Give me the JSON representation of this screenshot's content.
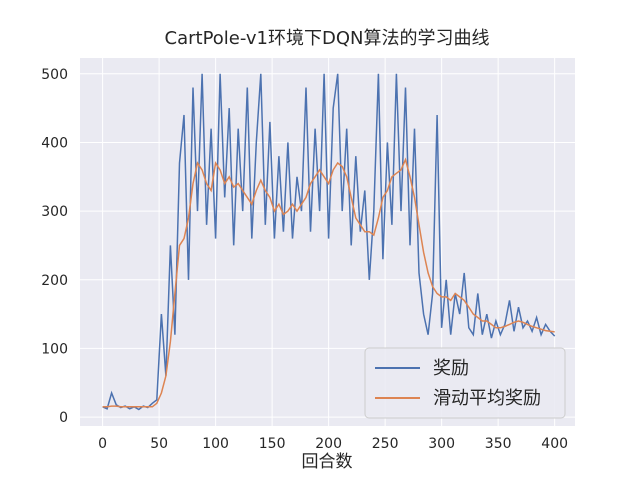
{
  "chart_data": {
    "type": "line",
    "title": "CartPole-v1环境下DQN算法的学习曲线",
    "x_label": "回合数",
    "xlim": [
      -20,
      418
    ],
    "ylim": [
      -13,
      523
    ],
    "xticks": [
      0,
      50,
      100,
      150,
      200,
      250,
      300,
      350,
      400
    ],
    "yticks": [
      0,
      100,
      200,
      300,
      400,
      500
    ],
    "grid": true,
    "legend": "lower right",
    "x": [
      0,
      4,
      8,
      12,
      16,
      20,
      24,
      28,
      32,
      36,
      40,
      44,
      48,
      52,
      56,
      60,
      64,
      68,
      72,
      76,
      80,
      84,
      88,
      92,
      96,
      100,
      104,
      108,
      112,
      116,
      120,
      124,
      128,
      132,
      136,
      140,
      144,
      148,
      152,
      156,
      160,
      164,
      168,
      172,
      176,
      180,
      184,
      188,
      192,
      196,
      200,
      204,
      208,
      212,
      216,
      220,
      224,
      228,
      232,
      236,
      240,
      244,
      248,
      252,
      256,
      260,
      264,
      268,
      272,
      276,
      280,
      284,
      288,
      292,
      296,
      300,
      304,
      308,
      312,
      316,
      320,
      324,
      328,
      332,
      336,
      340,
      344,
      348,
      352,
      356,
      360,
      364,
      368,
      372,
      376,
      380,
      384,
      388,
      392,
      396,
      400
    ],
    "series": [
      {
        "name": "奖励",
        "color": "#4c72b0",
        "values": [
          15,
          12,
          35,
          18,
          14,
          16,
          12,
          15,
          11,
          16,
          14,
          20,
          25,
          150,
          60,
          250,
          120,
          370,
          440,
          200,
          480,
          300,
          500,
          280,
          420,
          260,
          500,
          320,
          450,
          250,
          420,
          300,
          480,
          260,
          400,
          500,
          280,
          430,
          260,
          380,
          270,
          400,
          260,
          350,
          300,
          480,
          270,
          420,
          300,
          500,
          260,
          450,
          500,
          300,
          420,
          250,
          380,
          270,
          330,
          200,
          300,
          500,
          230,
          400,
          280,
          500,
          300,
          480,
          250,
          420,
          210,
          150,
          120,
          180,
          440,
          130,
          200,
          120,
          180,
          150,
          210,
          130,
          120,
          180,
          120,
          150,
          115,
          140,
          120,
          135,
          170,
          125,
          160,
          130,
          140,
          125,
          145,
          120,
          135,
          125,
          118
        ]
      },
      {
        "name": "滑动平均奖励",
        "color": "#dd8452",
        "values": [
          15,
          15,
          16,
          16,
          15,
          15,
          15,
          15,
          15,
          15,
          15,
          15,
          20,
          35,
          60,
          110,
          180,
          250,
          260,
          290,
          340,
          370,
          360,
          340,
          330,
          370,
          360,
          340,
          350,
          335,
          340,
          330,
          320,
          310,
          330,
          345,
          330,
          320,
          300,
          310,
          295,
          300,
          310,
          300,
          310,
          320,
          340,
          350,
          360,
          350,
          340,
          360,
          370,
          365,
          350,
          320,
          290,
          280,
          270,
          270,
          265,
          290,
          320,
          330,
          350,
          355,
          360,
          375,
          350,
          320,
          280,
          240,
          210,
          190,
          180,
          175,
          175,
          170,
          180,
          175,
          170,
          160,
          150,
          145,
          140,
          140,
          135,
          130,
          130,
          132,
          135,
          138,
          140,
          138,
          135,
          132,
          130,
          128,
          126,
          125,
          124
        ]
      }
    ]
  }
}
